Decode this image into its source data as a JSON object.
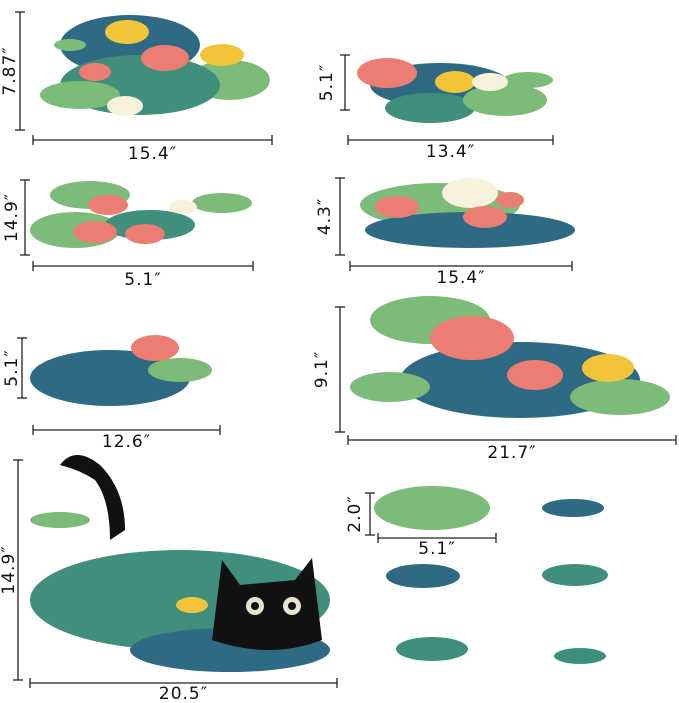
{
  "items": [
    {
      "height": "7.87″",
      "width": "15.4″"
    },
    {
      "height": "5.1″",
      "width": "13.4″"
    },
    {
      "height": "14.9″",
      "width": "5.1″"
    },
    {
      "height": "4.3″",
      "width": "15.4″"
    },
    {
      "height": "5.1″",
      "width": "12.6″"
    },
    {
      "height": "9.1″",
      "width": "21.7″"
    },
    {
      "height": "14.9″",
      "width": "20.5″"
    },
    {
      "height": "2.0″",
      "width": "5.1″"
    }
  ]
}
